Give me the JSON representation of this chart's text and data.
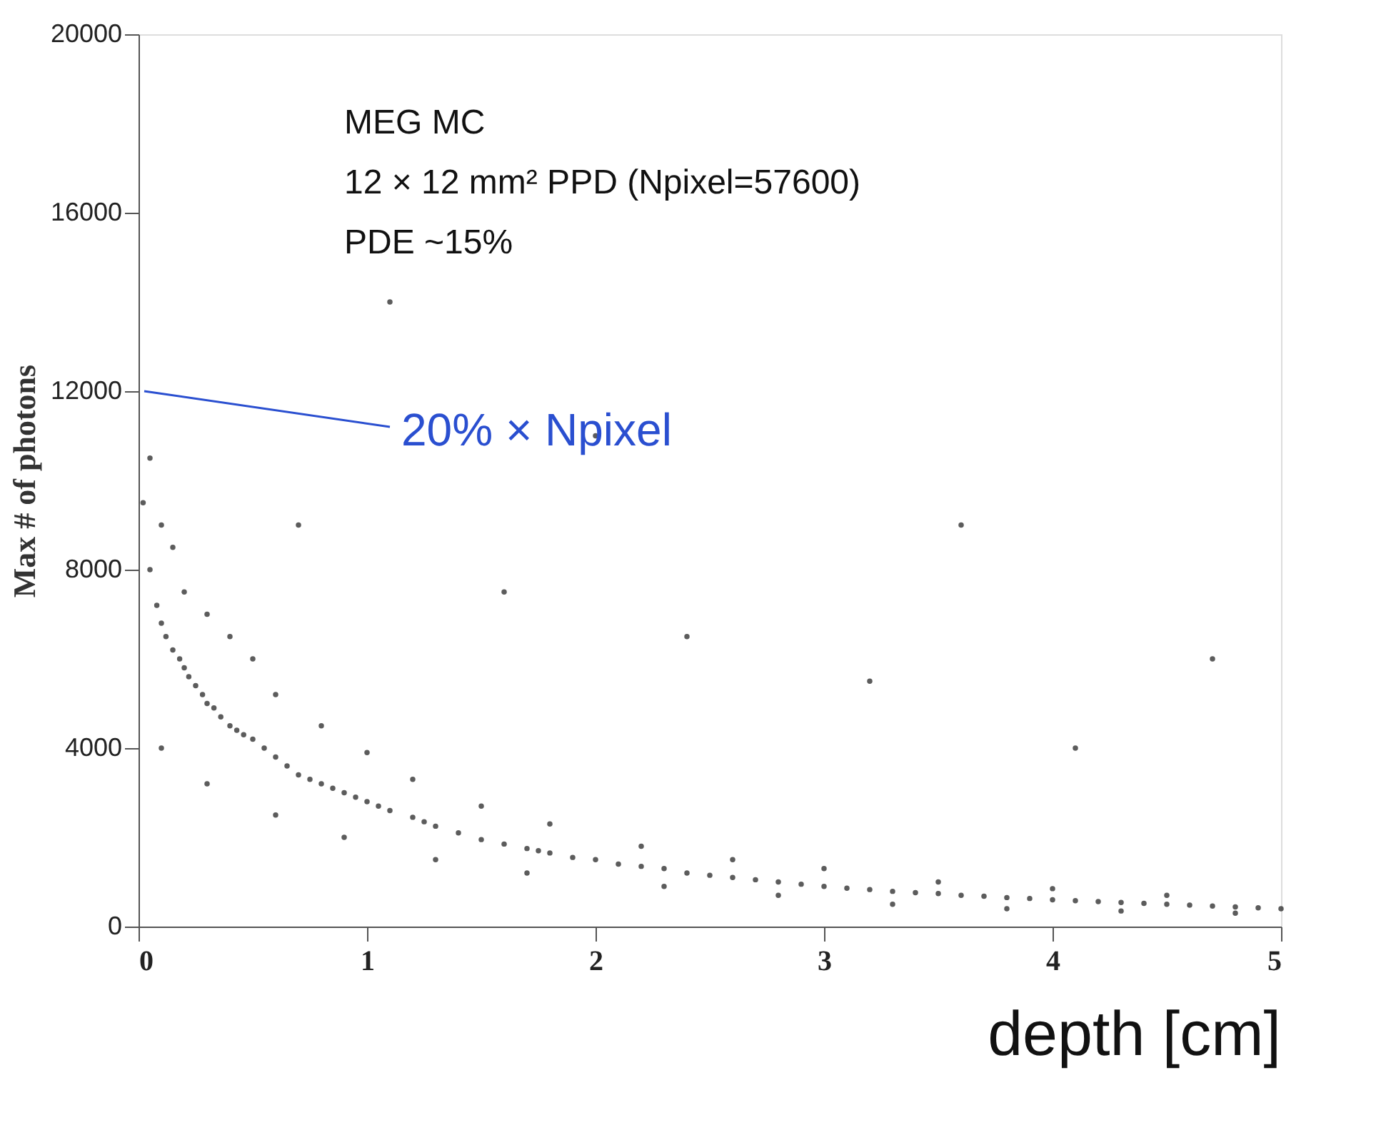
{
  "chart_data": {
    "type": "scatter",
    "xlabel": "depth [cm]",
    "ylabel": "Max # of photons",
    "annotations": [
      "MEG MC",
      "12 × 12 mm² PPD (Npixel=57600)",
      "PDE ~15%",
      "20% × Npixel"
    ],
    "x": [
      0.02,
      0.05,
      0.08,
      0.1,
      0.12,
      0.15,
      0.18,
      0.2,
      0.22,
      0.25,
      0.28,
      0.3,
      0.33,
      0.36,
      0.4,
      0.43,
      0.46,
      0.5,
      0.55,
      0.6,
      0.65,
      0.7,
      0.75,
      0.8,
      0.85,
      0.9,
      0.95,
      1.0,
      1.05,
      1.1,
      1.2,
      1.25,
      1.3,
      1.4,
      1.5,
      1.6,
      1.7,
      1.75,
      1.8,
      1.9,
      2.0,
      2.1,
      2.2,
      2.3,
      2.4,
      2.5,
      2.6,
      2.7,
      2.8,
      2.9,
      3.0,
      3.1,
      3.2,
      3.3,
      3.4,
      3.5,
      3.6,
      3.7,
      3.8,
      3.9,
      4.0,
      4.1,
      4.2,
      4.3,
      4.4,
      4.5,
      4.6,
      4.7,
      4.8,
      4.9,
      5.0,
      0.05,
      0.1,
      0.15,
      0.2,
      0.3,
      0.4,
      0.5,
      0.6,
      0.8,
      1.0,
      1.2,
      1.5,
      1.8,
      2.2,
      2.6,
      3.0,
      3.5,
      4.0,
      4.5,
      0.1,
      0.3,
      0.6,
      0.9,
      1.3,
      1.7,
      2.3,
      2.8,
      3.3,
      3.8,
      4.3,
      4.8,
      0.7,
      1.6,
      2.4,
      3.2,
      4.1,
      4.7,
      1.1,
      2.0,
      3.6
    ],
    "series": [
      {
        "color": "#333333",
        "values": [
          9500,
          8000,
          7200,
          6800,
          6500,
          6200,
          6000,
          5800,
          5600,
          5400,
          5200,
          5000,
          4900,
          4700,
          4500,
          4400,
          4300,
          4200,
          4000,
          3800,
          3600,
          3400,
          3300,
          3200,
          3100,
          3000,
          2900,
          2800,
          2700,
          2600,
          2450,
          2350,
          2250,
          2100,
          1950,
          1850,
          1750,
          1700,
          1650,
          1550,
          1500,
          1400,
          1350,
          1300,
          1200,
          1150,
          1100,
          1050,
          1000,
          950,
          900,
          860,
          830,
          790,
          760,
          740,
          700,
          680,
          650,
          630,
          600,
          580,
          560,
          540,
          520,
          500,
          480,
          460,
          440,
          420,
          400,
          10500,
          9000,
          8500,
          7500,
          7000,
          6500,
          6000,
          5200,
          4500,
          3900,
          3300,
          2700,
          2300,
          1800,
          1500,
          1300,
          1000,
          850,
          700,
          4000,
          3200,
          2500,
          2000,
          1500,
          1200,
          900,
          700,
          500,
          400,
          350,
          300,
          9000,
          7500,
          6500,
          5500,
          4000,
          6000,
          14000,
          11000,
          9000
        ]
      }
    ],
    "xlim": [
      0,
      5
    ],
    "ylim": [
      0,
      20000
    ],
    "xticks": [
      0,
      1,
      2,
      3,
      4,
      5
    ],
    "yticks": [
      0,
      4000,
      8000,
      12000,
      16000,
      20000
    ],
    "grid": false,
    "marker": "circle"
  }
}
